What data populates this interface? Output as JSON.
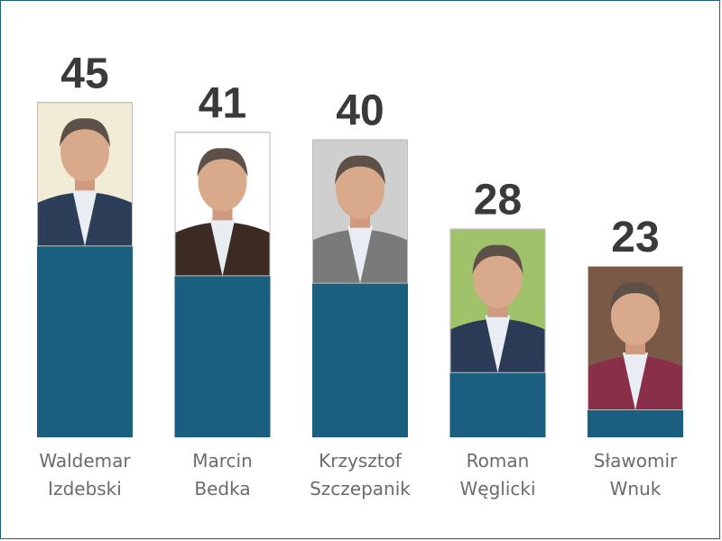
{
  "chart_data": {
    "type": "bar",
    "categories": [
      [
        "Waldemar",
        "Izdebski"
      ],
      [
        "Marcin",
        "Bedka"
      ],
      [
        "Krzysztof",
        "Szczepanik"
      ],
      [
        "Roman",
        "Węglicki"
      ],
      [
        "Sławomir",
        "Wnuk"
      ]
    ],
    "values": [
      45,
      41,
      40,
      28,
      23
    ],
    "ylim": [
      0,
      50
    ],
    "bar_color": "#1b5f80",
    "legend": "none",
    "grid": false,
    "photo_backgrounds": [
      "#f2ecd6",
      "#ffffff",
      "#cfcfcf",
      "#9fc26a",
      "#7a5a46"
    ],
    "suit_colors": [
      "#2c3e58",
      "#3d2a22",
      "#7a7a7a",
      "#2b3a55",
      "#8a2f4a"
    ]
  }
}
